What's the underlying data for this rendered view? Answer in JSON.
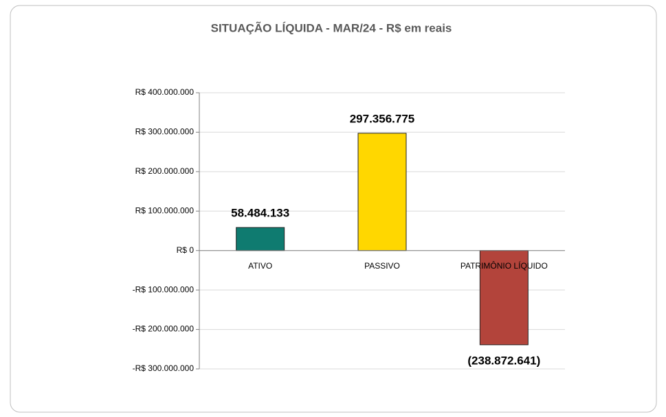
{
  "chart_data": {
    "type": "bar",
    "title": "SITUAÇÃO LÍQUIDA -  MAR/24 - R$ em reais",
    "categories": [
      "ATIVO",
      "PASSIVO",
      "PATRIMÔNIO LÍQUIDO"
    ],
    "values": [
      58484133,
      297356775,
      -238872641
    ],
    "value_labels": [
      "58.484.133",
      "297.356.775",
      "(238.872.641)"
    ],
    "colors": [
      "#0f7b70",
      "#ffd700",
      "#b3443b"
    ],
    "ylim": [
      -300000000,
      400000000
    ],
    "yticks": [
      {
        "value": -300000000,
        "label": "-R$ 300.000.000"
      },
      {
        "value": -200000000,
        "label": "-R$ 200.000.000"
      },
      {
        "value": -100000000,
        "label": "-R$ 100.000.000"
      },
      {
        "value": 0,
        "label": "R$ 0"
      },
      {
        "value": 100000000,
        "label": "R$ 100.000.000"
      },
      {
        "value": 200000000,
        "label": "R$ 200.000.000"
      },
      {
        "value": 300000000,
        "label": "R$ 300.000.000"
      },
      {
        "value": 400000000,
        "label": "R$ 400.000.000"
      }
    ],
    "grid": true
  }
}
